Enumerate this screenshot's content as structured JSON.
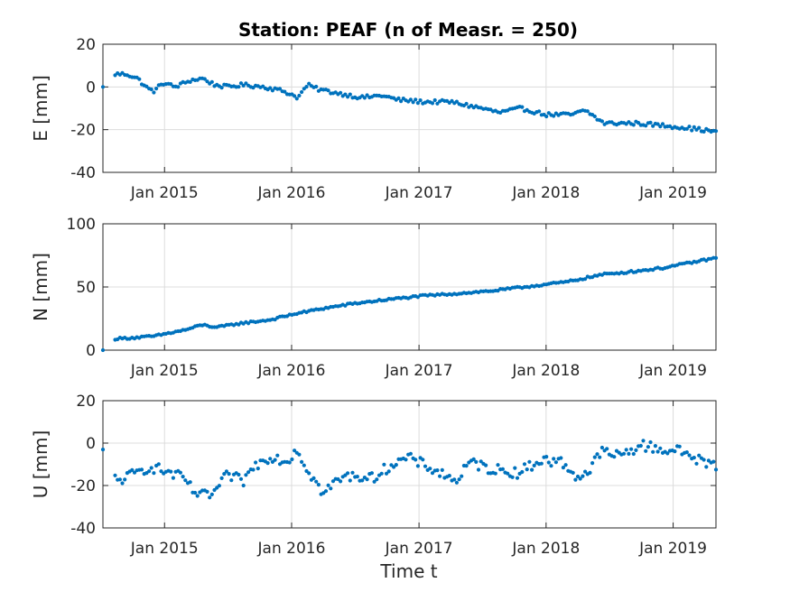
{
  "chart_data": {
    "type": "scatter",
    "title": "Station: PEAF (n of Measr. = 250)",
    "xlabel": "Time t",
    "n_points": 250,
    "xlim": [
      "2014-07-08",
      "2019-05-04"
    ],
    "x_ticks": [
      "2015-01-01",
      "2016-01-01",
      "2017-01-01",
      "2018-01-01",
      "2019-01-01"
    ],
    "x_tick_labels": [
      "Jan 2015",
      "Jan 2016",
      "Jan 2017",
      "Jan 2018",
      "Jan 2019"
    ],
    "marker_color": "#0072BD",
    "grid": true,
    "panels": [
      {
        "name": "E",
        "ylabel": "E [mm]",
        "ylim": [
          -40,
          20
        ],
        "y_ticks": [
          20,
          0,
          -20,
          -40
        ],
        "y_tick_labels": [
          "20",
          "0",
          "-20",
          "-40"
        ],
        "anchors": [
          [
            "2014-07-08",
            0
          ],
          [
            "2014-08-12",
            6
          ],
          [
            "2014-09-15",
            6
          ],
          [
            "2014-10-15",
            4
          ],
          [
            "2014-11-15",
            -1
          ],
          [
            "2014-12-05",
            -2
          ],
          [
            "2014-12-25",
            2
          ],
          [
            "2015-02-01",
            0
          ],
          [
            "2015-03-15",
            3
          ],
          [
            "2015-04-20",
            4
          ],
          [
            "2015-05-25",
            1
          ],
          [
            "2015-07-01",
            0
          ],
          [
            "2015-08-15",
            1
          ],
          [
            "2015-10-15",
            0
          ],
          [
            "2015-12-10",
            -2
          ],
          [
            "2016-01-20",
            -5
          ],
          [
            "2016-02-15",
            1
          ],
          [
            "2016-03-15",
            -1
          ],
          [
            "2016-05-15",
            -3
          ],
          [
            "2016-07-20",
            -5
          ],
          [
            "2016-09-15",
            -4
          ],
          [
            "2016-11-01",
            -6
          ],
          [
            "2017-01-15",
            -7
          ],
          [
            "2017-04-01",
            -7
          ],
          [
            "2017-07-01",
            -10
          ],
          [
            "2017-08-20",
            -12
          ],
          [
            "2017-10-20",
            -10
          ],
          [
            "2018-01-01",
            -13
          ],
          [
            "2018-03-15",
            -13
          ],
          [
            "2018-04-25",
            -11
          ],
          [
            "2018-06-15",
            -17
          ],
          [
            "2018-09-15",
            -17
          ],
          [
            "2018-12-01",
            -18
          ],
          [
            "2019-02-01",
            -19
          ],
          [
            "2019-05-04",
            -21
          ]
        ],
        "noise": 0.9
      },
      {
        "name": "N",
        "ylabel": "N [mm]",
        "ylim": [
          0,
          100
        ],
        "y_ticks": [
          100,
          50,
          0
        ],
        "y_tick_labels": [
          "100",
          "50",
          "0"
        ],
        "anchors": [
          [
            "2014-07-08",
            0
          ],
          [
            "2014-08-12",
            9
          ],
          [
            "2014-10-15",
            10
          ],
          [
            "2014-12-01",
            11
          ],
          [
            "2015-03-01",
            16
          ],
          [
            "2015-04-20",
            20
          ],
          [
            "2015-06-01",
            18
          ],
          [
            "2015-08-01",
            21
          ],
          [
            "2015-11-01",
            24
          ],
          [
            "2016-01-15",
            29
          ],
          [
            "2016-04-01",
            33
          ],
          [
            "2016-07-01",
            37
          ],
          [
            "2016-10-01",
            40
          ],
          [
            "2017-01-15",
            43
          ],
          [
            "2017-05-01",
            45
          ],
          [
            "2017-08-01",
            47
          ],
          [
            "2017-12-01",
            51
          ],
          [
            "2018-03-01",
            54
          ],
          [
            "2018-06-15",
            60
          ],
          [
            "2018-09-01",
            62
          ],
          [
            "2018-12-01",
            65
          ],
          [
            "2019-05-04",
            73
          ]
        ],
        "noise": 0.8
      },
      {
        "name": "U",
        "ylabel": "U [mm]",
        "ylim": [
          -40,
          20
        ],
        "y_ticks": [
          20,
          0,
          -20,
          -40
        ],
        "y_tick_labels": [
          "20",
          "0",
          "-20",
          "-40"
        ],
        "anchors": [
          [
            "2014-07-08",
            -3
          ],
          [
            "2014-08-15",
            -18
          ],
          [
            "2014-10-01",
            -15
          ],
          [
            "2014-11-20",
            -11
          ],
          [
            "2015-01-15",
            -14
          ],
          [
            "2015-03-01",
            -17
          ],
          [
            "2015-03-20",
            -22
          ],
          [
            "2015-04-15",
            -25
          ],
          [
            "2015-05-20",
            -24
          ],
          [
            "2015-07-01",
            -15
          ],
          [
            "2015-08-15",
            -18
          ],
          [
            "2015-09-15",
            -11
          ],
          [
            "2015-11-01",
            -6
          ],
          [
            "2015-12-25",
            -9
          ],
          [
            "2016-01-10",
            -2
          ],
          [
            "2016-03-01",
            -16
          ],
          [
            "2016-04-01",
            -24
          ],
          [
            "2016-05-15",
            -17
          ],
          [
            "2016-07-01",
            -15
          ],
          [
            "2016-08-15",
            -17
          ],
          [
            "2016-10-15",
            -10
          ],
          [
            "2016-12-01",
            -7
          ],
          [
            "2017-01-25",
            -11
          ],
          [
            "2017-03-15",
            -15
          ],
          [
            "2017-04-15",
            -18
          ],
          [
            "2017-06-01",
            -9
          ],
          [
            "2017-07-20",
            -12
          ],
          [
            "2017-10-15",
            -14
          ],
          [
            "2017-12-15",
            -8
          ],
          [
            "2018-02-15",
            -9
          ],
          [
            "2018-04-01",
            -16
          ],
          [
            "2018-05-10",
            -13
          ],
          [
            "2018-06-01",
            -4
          ],
          [
            "2018-08-01",
            -6
          ],
          [
            "2018-10-01",
            -1
          ],
          [
            "2018-12-01",
            -3
          ],
          [
            "2019-02-01",
            -4
          ],
          [
            "2019-03-15",
            -8
          ],
          [
            "2019-05-04",
            -11
          ]
        ],
        "noise": 2.6
      }
    ]
  }
}
